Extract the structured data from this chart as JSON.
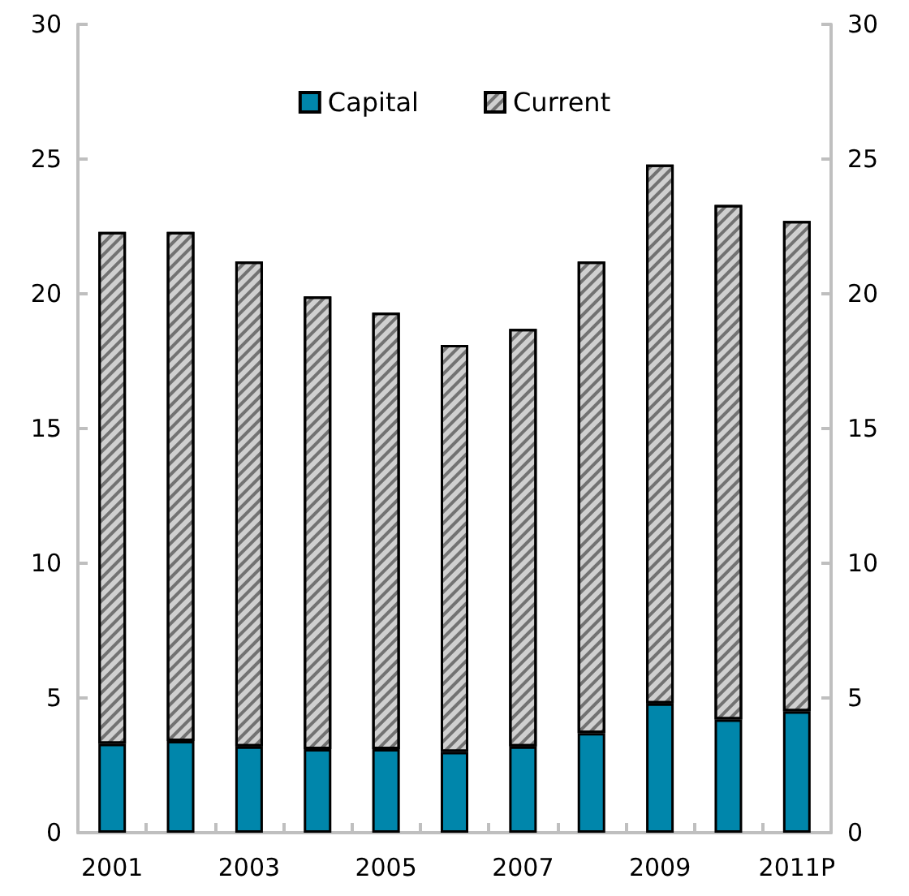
{
  "chart_data": {
    "type": "bar",
    "stacked": true,
    "categories": [
      "2001",
      null,
      "2003",
      null,
      "2005",
      null,
      "2007",
      null,
      "2009",
      null,
      "2011P"
    ],
    "series": [
      {
        "name": "Capital",
        "color": "#0086ab",
        "values": [
          3.3,
          3.4,
          3.2,
          3.1,
          3.1,
          3.0,
          3.2,
          3.7,
          4.8,
          4.2,
          4.5
        ]
      },
      {
        "name": "Current",
        "color": "#d0d0d0",
        "values": [
          19.0,
          18.9,
          18.0,
          16.8,
          16.2,
          15.1,
          15.5,
          17.5,
          20.0,
          19.1,
          18.2
        ]
      }
    ],
    "ylim": [
      0,
      30
    ],
    "yticks": [
      0,
      5,
      10,
      15,
      20,
      25,
      30
    ],
    "y2lim": [
      0,
      30
    ],
    "y2ticks": [
      0,
      5,
      10,
      15,
      20,
      25,
      30
    ],
    "grid": false,
    "legend": "top"
  }
}
